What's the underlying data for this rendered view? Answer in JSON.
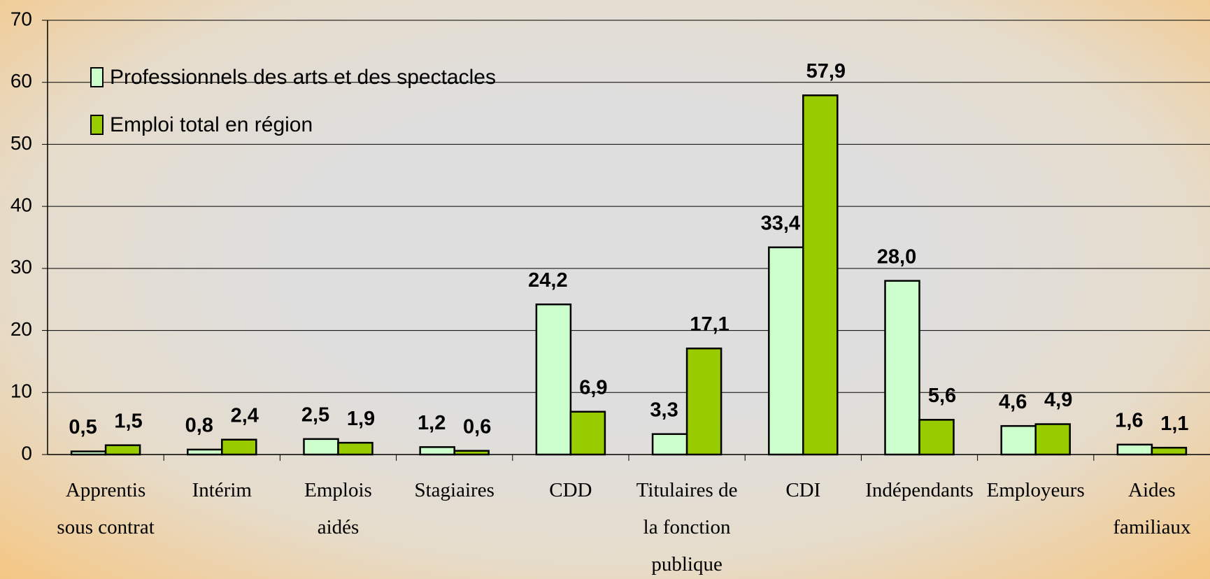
{
  "chart_data": {
    "type": "bar",
    "categories": [
      "Apprentis sous contrat",
      "Intérim",
      "Emplois aidés",
      "Stagiaires",
      "CDD",
      "Titulaires de la fonction publique",
      "CDI",
      "Indépendants",
      "Employeurs",
      "Aides familiaux"
    ],
    "series": [
      {
        "name": "Professionnels des arts et des spectacles",
        "color": "#ccffcc",
        "values": [
          0.5,
          0.8,
          2.5,
          1.2,
          24.2,
          3.3,
          33.4,
          28.0,
          4.6,
          1.6
        ],
        "value_labels": [
          "0,5",
          "0,8",
          "2,5",
          "1,2",
          "24,2",
          "3,3",
          "33,4",
          "28,0",
          "4,6",
          "1,6"
        ]
      },
      {
        "name": "Emploi total en région",
        "color": "#99cc00",
        "values": [
          1.5,
          2.4,
          1.9,
          0.6,
          6.9,
          17.1,
          57.9,
          5.6,
          4.9,
          1.1
        ],
        "value_labels": [
          "1,5",
          "2,4",
          "1,9",
          "0,6",
          "6,9",
          "17,1",
          "57,9",
          "5,6",
          "4,9",
          "1,1"
        ]
      }
    ],
    "ylim": [
      0,
      70
    ],
    "yticks": [
      0,
      10,
      20,
      30,
      40,
      50,
      60,
      70
    ],
    "grid": true,
    "legend": "upper left"
  }
}
